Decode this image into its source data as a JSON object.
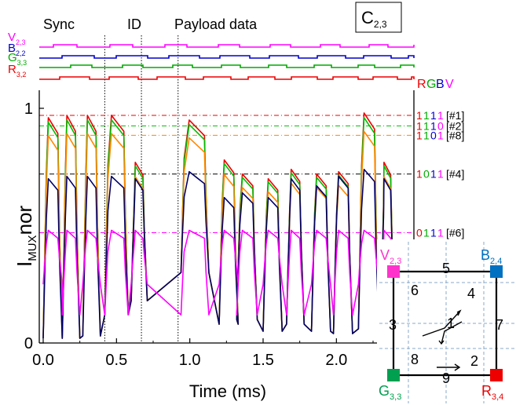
{
  "chart_data": {
    "type": "line",
    "xlabel": "Time (ms)",
    "ylabel_main": "I",
    "ylabel_sub": "MUX",
    "ylabel_tail": "nor",
    "x_ticks": [
      "0.0",
      "0.5",
      "1.0",
      "1.5",
      "2.0"
    ],
    "x_tick_values": [
      0.0,
      0.5,
      1.0,
      1.5,
      2.0
    ],
    "y_ticks": [
      "0",
      "1"
    ],
    "y_tick_values": [
      0,
      1
    ],
    "xlim": [
      -0.03,
      2.38
    ],
    "ylim": [
      0,
      1.0
    ],
    "sections": [
      {
        "label": "Sync",
        "x_start": 0.0
      },
      {
        "label": "ID",
        "x_start": 0.42
      },
      {
        "label": "Payload data",
        "x_start": 0.92
      }
    ],
    "section_dividers": [
      0.42,
      0.67,
      0.92
    ],
    "cell_label_main": "C",
    "cell_label_sub": "2,3",
    "control_signals": [
      {
        "name_main": "V",
        "name_sub": "2,3",
        "color": "#ff00ff"
      },
      {
        "name_main": "B",
        "name_sub": "2,2",
        "color": "#0000cc"
      },
      {
        "name_main": "G",
        "name_sub": "3,3",
        "color": "#00aa00"
      },
      {
        "name_main": "R",
        "name_sub": "3,2",
        "color": "#ee0000"
      }
    ],
    "code_header": [
      {
        "ch": "R",
        "color": "#ee0000"
      },
      {
        "ch": "G",
        "color": "#00aa00"
      },
      {
        "ch": "B",
        "color": "#0000cc"
      },
      {
        "ch": "V",
        "color": "#ff00ff"
      }
    ],
    "levels": [
      {
        "code": "1111",
        "tag": "[#1]",
        "y": 0.97,
        "color": "#ee0000"
      },
      {
        "code": "1110",
        "tag": "[#2]",
        "y": 0.925,
        "color": "#00bb00"
      },
      {
        "code": "1101",
        "tag": "[#8]",
        "y": 0.885,
        "color": "#ff8800"
      },
      {
        "code": "1011",
        "tag": "[#4]",
        "y": 0.72,
        "color": "#000000"
      },
      {
        "code": "0111",
        "tag": "[#6]",
        "y": 0.47,
        "color": "#ff00ff"
      }
    ],
    "series": [
      {
        "color": "#ee0000"
      },
      {
        "color": "#00bb00"
      },
      {
        "color": "#ff8800"
      },
      {
        "color": "#000066"
      },
      {
        "color": "#ff00ff"
      }
    ],
    "inset": {
      "nodes": [
        {
          "main": "V",
          "sub": "2,3",
          "color": "#ff33cc"
        },
        {
          "main": "B",
          "sub": "2,4",
          "color": "#0070c0"
        },
        {
          "main": "G",
          "sub": "3,3",
          "color": "#00a050"
        },
        {
          "main": "R",
          "sub": "3,4",
          "color": "#ee0000"
        }
      ],
      "cells": [
        "1",
        "2",
        "3",
        "4",
        "5",
        "6",
        "7",
        "8",
        "9"
      ]
    }
  }
}
